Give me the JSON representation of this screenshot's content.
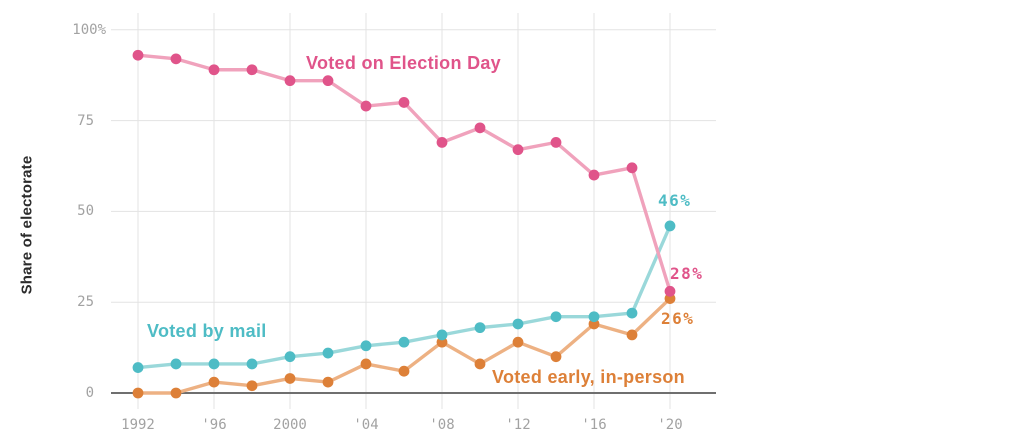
{
  "chart_data": {
    "type": "line",
    "ylabel": "Share of electorate",
    "x_years": [
      1992,
      1994,
      1996,
      1998,
      2000,
      2002,
      2004,
      2006,
      2008,
      2010,
      2012,
      2014,
      2016,
      2018,
      2020
    ],
    "x_tick_years": [
      1992,
      1996,
      2000,
      2004,
      2008,
      2012,
      2016,
      2020
    ],
    "x_tick_labels": [
      "1992",
      "'96",
      "2000",
      "'04",
      "'08",
      "'12",
      "'16",
      "'20"
    ],
    "y_ticks": [
      0,
      25,
      50,
      75,
      100
    ],
    "y_tick_labels": [
      "0",
      "25",
      "50",
      "75",
      "100%"
    ],
    "ylim": [
      0,
      100
    ],
    "grid": true,
    "legend_position": "inline-annotations",
    "grid_color": "#e3e3e3",
    "zero_line_color": "#6f6f6f",
    "tick_color": "#a2a2a2",
    "background_color": "#ffffff",
    "series": [
      {
        "name": "Voted on Election Day",
        "color": "#e0548a",
        "line_color": "#f0a2bc",
        "values": [
          93,
          92,
          89,
          89,
          86,
          86,
          79,
          80,
          69,
          73,
          67,
          69,
          60,
          62,
          28
        ],
        "end_label": "28%"
      },
      {
        "name": "Voted by mail",
        "color": "#4ebcc5",
        "line_color": "#9ad8da",
        "values": [
          7,
          8,
          8,
          8,
          10,
          11,
          13,
          14,
          16,
          18,
          19,
          21,
          21,
          22,
          46
        ],
        "end_label": "46%"
      },
      {
        "name": "Voted early, in-person",
        "color": "#dd8038",
        "line_color": "#edb183",
        "values": [
          0,
          0,
          3,
          2,
          4,
          3,
          8,
          6,
          14,
          8,
          14,
          10,
          19,
          16,
          26
        ],
        "end_label": "26%"
      }
    ]
  }
}
